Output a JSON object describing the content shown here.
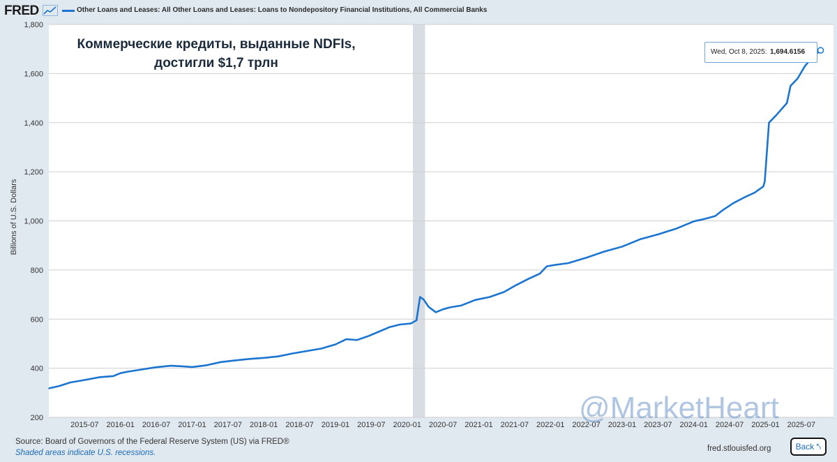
{
  "header": {
    "logo": "FRED",
    "series_title": "Other Loans and Leases: All Other Loans and Leases: Loans to Nondepository Financial Institutions, All Commercial Banks"
  },
  "annotation": {
    "line1": "Коммерческие кредиты, выданные NDFIs,",
    "line2": "достигли $1,7 трлн"
  },
  "tooltip": {
    "date": "Wed, Oct 8, 2025:",
    "value": "1,694.6156"
  },
  "watermark": "@MarketHeart",
  "footer": {
    "source": "Source: Board of Governors of the Federal Reserve System (US) via FRED®",
    "note": "Shaded areas indicate U.S. recessions.",
    "site": "fred.stlouisfed.org",
    "back_label": "Back"
  },
  "colors": {
    "line": "#1a74d0",
    "recession": "#d7dde3",
    "grid": "#cfcfcf"
  },
  "chart_data": {
    "type": "line",
    "title": "Other Loans and Leases: All Other Loans and Leases: Loans to Nondepository Financial Institutions, All Commercial Banks",
    "ylabel": "Billions of U.S. Dollars",
    "xlabel": "",
    "ylim": [
      200,
      1800
    ],
    "yticks": [
      200,
      400,
      600,
      800,
      1000,
      1200,
      1400,
      1600,
      1800
    ],
    "ytick_labels": [
      "200",
      "400",
      "600",
      "800",
      "1,000",
      "1,200",
      "1,400",
      "1,600",
      "1,800"
    ],
    "xlim": [
      2015.0,
      2025.95
    ],
    "xticks": [
      2015.5,
      2016.0,
      2016.5,
      2017.0,
      2017.5,
      2018.0,
      2018.5,
      2019.0,
      2019.5,
      2020.0,
      2020.5,
      2021.0,
      2021.5,
      2022.0,
      2022.5,
      2023.0,
      2023.5,
      2024.0,
      2024.5,
      2025.0,
      2025.5
    ],
    "xtick_labels": [
      "2015-07",
      "2016-01",
      "2016-07",
      "2017-01",
      "2017-07",
      "2018-01",
      "2018-07",
      "2019-01",
      "2019-07",
      "2020-01",
      "2020-07",
      "2021-01",
      "2021-07",
      "2022-01",
      "2022-07",
      "2023-01",
      "2023-07",
      "2024-01",
      "2024-07",
      "2025-01",
      "2025-07"
    ],
    "recessions": [
      [
        2020.08,
        2020.25
      ]
    ],
    "series": [
      {
        "name": "Loans to Nondepository Financial Institutions",
        "x": [
          2015.0,
          2015.15,
          2015.3,
          2015.5,
          2015.7,
          2015.9,
          2016.0,
          2016.1,
          2016.3,
          2016.5,
          2016.7,
          2016.85,
          2017.0,
          2017.2,
          2017.4,
          2017.6,
          2017.8,
          2018.0,
          2018.2,
          2018.4,
          2018.6,
          2018.8,
          2019.0,
          2019.15,
          2019.3,
          2019.45,
          2019.6,
          2019.75,
          2019.9,
          2020.05,
          2020.13,
          2020.18,
          2020.23,
          2020.3,
          2020.4,
          2020.5,
          2020.6,
          2020.75,
          2020.95,
          2021.15,
          2021.35,
          2021.5,
          2021.7,
          2021.85,
          2021.95,
          2022.05,
          2022.25,
          2022.5,
          2022.75,
          2023.0,
          2023.25,
          2023.5,
          2023.75,
          2024.0,
          2024.15,
          2024.3,
          2024.4,
          2024.55,
          2024.7,
          2024.85,
          2024.97,
          2024.99,
          2025.05,
          2025.15,
          2025.3,
          2025.35,
          2025.45,
          2025.55,
          2025.65,
          2025.77
        ],
        "values": [
          318,
          328,
          342,
          352,
          363,
          368,
          380,
          386,
          395,
          404,
          410,
          408,
          405,
          412,
          425,
          432,
          438,
          442,
          448,
          460,
          470,
          480,
          497,
          518,
          515,
          530,
          548,
          567,
          578,
          582,
          595,
          690,
          680,
          650,
          628,
          640,
          648,
          655,
          678,
          690,
          710,
          735,
          765,
          785,
          815,
          820,
          828,
          850,
          875,
          895,
          925,
          945,
          968,
          998,
          1008,
          1020,
          1043,
          1072,
          1095,
          1115,
          1140,
          1160,
          1400,
          1430,
          1480,
          1550,
          1580,
          1630,
          1665,
          1694.6156
        ]
      }
    ]
  }
}
